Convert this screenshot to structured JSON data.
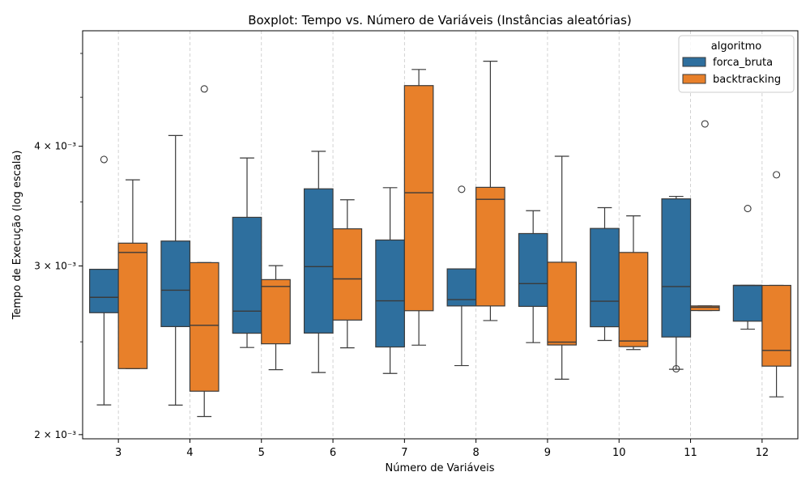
{
  "chart_data": {
    "type": "boxplot",
    "title": "Boxplot: Tempo vs. Número de Variáveis (Instâncias aleatórias)",
    "xlabel": "Número de Variáveis",
    "ylabel": "Tempo de Execução (log escala)",
    "yscale": "log",
    "ylim": [
      0.00198,
      0.00528
    ],
    "yticks": [
      {
        "value": 0.002,
        "label": "2 × 10⁻³"
      },
      {
        "value": 0.003,
        "label": "3 × 10⁻³"
      },
      {
        "value": 0.004,
        "label": "4 × 10⁻³"
      }
    ],
    "categories": [
      "3",
      "4",
      "5",
      "6",
      "7",
      "8",
      "9",
      "10",
      "11",
      "12"
    ],
    "grid": {
      "x": true,
      "y": false,
      "style": "dashed"
    },
    "legend": {
      "title": "algoritmo",
      "position": "top-right"
    },
    "series": [
      {
        "name": "forca_bruta",
        "color": "#2e6f9e",
        "boxes": [
          {
            "min": 0.002148,
            "q1": 0.002681,
            "median": 0.002782,
            "q3": 0.002976,
            "max": 0.002976,
            "outliers": [
              0.003875
            ]
          },
          {
            "min": 0.002147,
            "q1": 0.002593,
            "median": 0.00283,
            "q3": 0.003185,
            "max": 0.004105,
            "outliers": []
          },
          {
            "min": 0.002466,
            "q1": 0.002552,
            "median": 0.002691,
            "q3": 0.003372,
            "max": 0.003889,
            "outliers": []
          },
          {
            "min": 0.002322,
            "q1": 0.002553,
            "median": 0.002995,
            "q3": 0.003611,
            "max": 0.003952,
            "outliers": []
          },
          {
            "min": 0.002317,
            "q1": 0.002469,
            "median": 0.002759,
            "q3": 0.003193,
            "max": 0.003621,
            "outliers": []
          },
          {
            "min": 0.002361,
            "q1": 0.002725,
            "median": 0.002767,
            "q3": 0.002979,
            "max": 0.002979,
            "outliers": [
              0.003607
            ]
          },
          {
            "min": 0.002495,
            "q1": 0.002722,
            "median": 0.002875,
            "q3": 0.003243,
            "max": 0.003426,
            "outliers": []
          },
          {
            "min": 0.002508,
            "q1": 0.002592,
            "median": 0.002756,
            "q3": 0.003283,
            "max": 0.003451,
            "outliers": []
          },
          {
            "min": 0.00234,
            "q1": 0.002529,
            "median": 0.002855,
            "q3": 0.003525,
            "max": 0.003546,
            "outliers": [
              0.002343
            ]
          },
          {
            "min": 0.002577,
            "q1": 0.002627,
            "median": 0.002863,
            "q3": 0.002863,
            "max": 0.002863,
            "outliers": [
              0.003444
            ]
          }
        ]
      },
      {
        "name": "backtracking",
        "color": "#e8802a",
        "boxes": [
          {
            "min": 0.002344,
            "q1": 0.002344,
            "median": 0.003099,
            "q3": 0.003169,
            "max": 0.00369,
            "outliers": []
          },
          {
            "min": 0.002089,
            "q1": 0.00222,
            "median": 0.002601,
            "q3": 0.003024,
            "max": 0.003024,
            "outliers": [
              0.004591
            ]
          },
          {
            "min": 0.002338,
            "q1": 0.002488,
            "median": 0.002856,
            "q3": 0.002903,
            "max": 0.003002,
            "outliers": []
          },
          {
            "min": 0.002464,
            "q1": 0.002634,
            "median": 0.002908,
            "q3": 0.00328,
            "max": 0.003517,
            "outliers": []
          },
          {
            "min": 0.00248,
            "q1": 0.002694,
            "median": 0.003577,
            "q3": 0.004628,
            "max": 0.004811,
            "outliers": []
          },
          {
            "min": 0.002631,
            "q1": 0.002725,
            "median": 0.003521,
            "q3": 0.003624,
            "max": 0.004907,
            "outliers": []
          },
          {
            "min": 0.002285,
            "q1": 0.002481,
            "median": 0.002498,
            "q3": 0.003027,
            "max": 0.003905,
            "outliers": []
          },
          {
            "min": 0.002454,
            "q1": 0.002471,
            "median": 0.002505,
            "q3": 0.003099,
            "max": 0.003384,
            "outliers": []
          },
          {
            "min": 0.002695,
            "q1": 0.002695,
            "median": 0.002716,
            "q3": 0.002725,
            "max": 0.002725,
            "outliers": [
              0.004221
            ]
          },
          {
            "min": 0.00219,
            "q1": 0.002358,
            "median": 0.002449,
            "q3": 0.002863,
            "max": 0.002863,
            "outliers": [
              0.003735
            ]
          }
        ]
      }
    ]
  }
}
